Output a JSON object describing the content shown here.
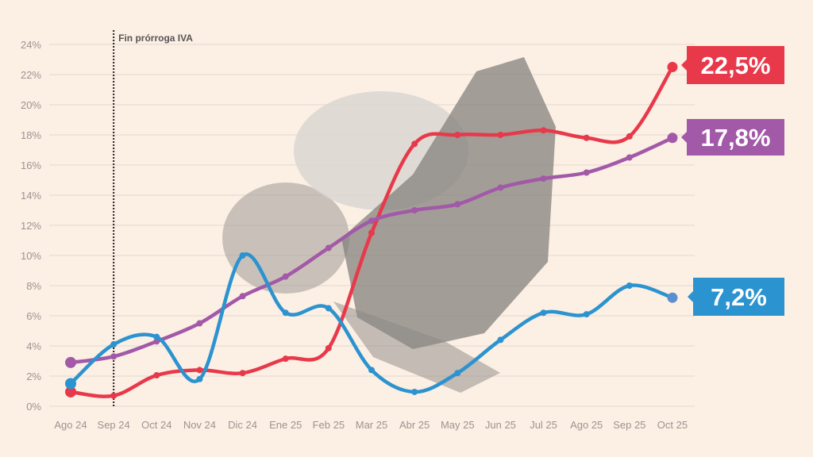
{
  "chart_data": {
    "type": "line",
    "title": "",
    "xlabel": "",
    "ylabel": "",
    "ylim": [
      0,
      24
    ],
    "grid": true,
    "y_ticks": [
      "0%",
      "2%",
      "4%",
      "6%",
      "8%",
      "10%",
      "12%",
      "14%",
      "16%",
      "18%",
      "20%",
      "22%",
      "24%"
    ],
    "categories": [
      "Ago 24",
      "Sep 24",
      "Oct 24",
      "Nov 24",
      "Dic 24",
      "Ene 25",
      "Feb 25",
      "Mar 25",
      "Abr 25",
      "May 25",
      "Jun 25",
      "Jul 25",
      "Ago 25",
      "Sep 25",
      "Oct 25"
    ],
    "annotation": {
      "category": "Sep 24",
      "text": "Fin prórroga IVA"
    },
    "series": [
      {
        "color": "#e8394a",
        "end_label": "22,5%",
        "values": [
          0.95,
          0.7,
          2.05,
          2.4,
          2.2,
          3.15,
          3.85,
          11.5,
          17.4,
          18.0,
          18.0,
          18.3,
          17.8,
          17.9,
          22.5
        ]
      },
      {
        "color": "#a259a8",
        "end_label": "17,8%",
        "values": [
          2.9,
          3.3,
          4.3,
          5.5,
          7.3,
          8.6,
          10.5,
          12.3,
          13.0,
          13.4,
          14.5,
          15.1,
          15.5,
          16.5,
          17.8
        ]
      },
      {
        "color": "#2b93cf",
        "end_label": "7,2%",
        "values": [
          1.5,
          4.1,
          4.6,
          1.8,
          10.0,
          6.2,
          6.5,
          2.4,
          0.95,
          2.2,
          4.4,
          6.2,
          6.1,
          8.0,
          7.2
        ]
      }
    ]
  }
}
